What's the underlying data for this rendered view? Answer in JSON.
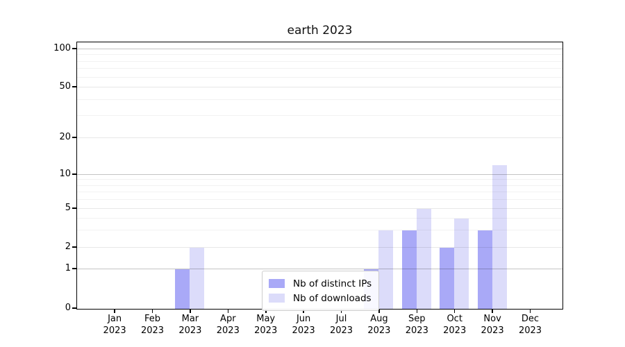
{
  "title": "earth 2023",
  "y_axis": {
    "tick_labels": [
      "100",
      "50",
      "20",
      "10",
      "5",
      "2",
      "1",
      "0"
    ],
    "tick_values": [
      100,
      50,
      20,
      10,
      5,
      2,
      1,
      0
    ]
  },
  "x_axis": {
    "year": "2023",
    "months": [
      "Jan",
      "Feb",
      "Mar",
      "Apr",
      "May",
      "Jun",
      "Jul",
      "Aug",
      "Sep",
      "Oct",
      "Nov",
      "Dec"
    ]
  },
  "legend": {
    "items": [
      {
        "label": "Nb of distinct IPs",
        "color": "#a9a9f7"
      },
      {
        "label": "Nb of downloads",
        "color": "#dcdcfa"
      }
    ]
  },
  "colors": {
    "distinct_ips_bar": "#a9a9f7",
    "downloads_bar": "#dcdcfa",
    "axis_spine": "#000000",
    "grid_decade": "#c6c6c6",
    "grid_major": "#e5e5e5",
    "grid_minor": "#f0f0f0",
    "background": "#ffffff",
    "text": "#000000"
  },
  "chart_data": {
    "type": "bar",
    "title": "earth 2023",
    "categories": [
      "Jan 2023",
      "Feb 2023",
      "Mar 2023",
      "Apr 2023",
      "May 2023",
      "Jun 2023",
      "Jul 2023",
      "Aug 2023",
      "Sep 2023",
      "Oct 2023",
      "Nov 2023",
      "Dec 2023"
    ],
    "series": [
      {
        "name": "Nb of distinct IPs",
        "color": "#a9a9f7",
        "values": [
          0,
          0,
          1,
          0,
          0,
          0,
          0,
          1,
          3,
          2,
          3,
          0
        ]
      },
      {
        "name": "Nb of downloads",
        "color": "#dcdcfa",
        "values": [
          0,
          0,
          2,
          0,
          0,
          0,
          0,
          3,
          5,
          4,
          12,
          0
        ]
      }
    ],
    "yscale": "symlog",
    "y_ticks": [
      0,
      1,
      2,
      5,
      10,
      20,
      50,
      100
    ],
    "y_minor_gridlines": [
      3,
      4,
      6,
      7,
      8,
      9,
      30,
      40,
      60,
      70,
      80,
      90
    ],
    "ylim": [
      0,
      112
    ],
    "xlabel": "",
    "ylabel": "",
    "grid": true,
    "legend_position": "lower center"
  }
}
